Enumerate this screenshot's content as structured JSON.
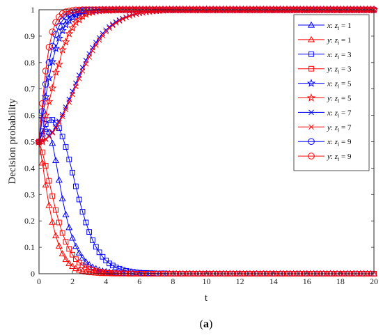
{
  "caption": {
    "open": "(",
    "letter": "a",
    "close": ")"
  },
  "chart_data": {
    "type": "line",
    "xlabel": "t",
    "ylabel": "Decision probability",
    "xlim": [
      0,
      20
    ],
    "ylim": [
      0,
      1
    ],
    "xticks": [
      0,
      2,
      4,
      6,
      8,
      10,
      12,
      14,
      16,
      18,
      20
    ],
    "yticks": [
      0,
      0.1,
      0.2,
      0.3,
      0.4,
      0.5,
      0.6,
      0.7,
      0.8,
      0.9,
      1
    ],
    "grid": false,
    "legend_position": "top-right",
    "x": [
      0,
      0.2,
      0.4,
      0.6,
      0.8,
      1.0,
      1.2,
      1.4,
      1.6,
      1.8,
      2.0,
      2.2,
      2.4,
      2.6,
      2.8,
      3.0,
      3.2,
      3.4,
      3.6,
      3.8,
      4.0,
      4.2,
      4.4,
      4.6,
      4.8,
      5.0,
      5.2,
      5.4,
      5.6,
      5.8,
      6.0,
      6.2,
      6.4,
      6.6,
      6.8,
      7.0,
      7.2,
      7.4,
      7.6,
      7.8,
      8.0,
      8.2,
      8.4,
      8.6,
      8.8,
      9.0,
      9.2,
      9.4,
      9.6,
      9.8,
      10.0,
      10.2,
      10.4,
      10.6,
      10.8,
      11.0,
      11.2,
      11.4,
      11.6,
      11.8,
      12.0,
      12.2,
      12.4,
      12.6,
      12.8,
      13.0,
      13.2,
      13.4,
      13.6,
      13.8,
      14.0,
      14.2,
      14.4,
      14.6,
      14.8,
      15.0,
      15.2,
      15.4,
      15.6,
      15.8,
      16.0,
      16.2,
      16.4,
      16.6,
      16.8,
      17.0,
      17.2,
      17.4,
      17.6,
      17.8,
      18.0,
      18.2,
      18.4,
      18.6,
      18.8,
      19.0,
      19.2,
      19.4,
      19.6,
      19.8,
      20.0
    ],
    "series": [
      {
        "name_prefix": "x",
        "name_value": "1",
        "color": "#0000ff",
        "marker": "triangle",
        "values": [
          0.5,
          0.53,
          0.548,
          0.537,
          0.494,
          0.429,
          0.355,
          0.284,
          0.224,
          0.175,
          0.135,
          0.104,
          0.079,
          0.06,
          0.045,
          0.034,
          0.025,
          0.019,
          0.014,
          0.01,
          0.008,
          0.006,
          0.004,
          0.003,
          0.002,
          0.002,
          0.001,
          0.001,
          0.001,
          0.0,
          0.0,
          0.0,
          0.0,
          0.0,
          0.0,
          0.0,
          0.0,
          0.0,
          0.0,
          0.0,
          0.0,
          0.0,
          0.0,
          0.0,
          0.0,
          0.0,
          0.0,
          0.0,
          0.0,
          0.0,
          0.0,
          0.0,
          0.0,
          0.0,
          0.0,
          0.0,
          0.0,
          0.0,
          0.0,
          0.0,
          0.0,
          0.0,
          0.0,
          0.0,
          0.0,
          0.0,
          0.0,
          0.0,
          0.0,
          0.0,
          0.0,
          0.0,
          0.0,
          0.0,
          0.0,
          0.0,
          0.0,
          0.0,
          0.0,
          0.0,
          0.0,
          0.0,
          0.0,
          0.0,
          0.0,
          0.0,
          0.0,
          0.0,
          0.0,
          0.0,
          0.0,
          0.0,
          0.0,
          0.0,
          0.0,
          0.0,
          0.0,
          0.0,
          0.0,
          0.0,
          0.0
        ]
      },
      {
        "name_prefix": "y",
        "name_value": "1",
        "color": "#ff0000",
        "marker": "triangle",
        "values": [
          0.5,
          0.42,
          0.336,
          0.259,
          0.195,
          0.144,
          0.105,
          0.076,
          0.054,
          0.039,
          0.028,
          0.02,
          0.014,
          0.01,
          0.007,
          0.005,
          0.004,
          0.003,
          0.002,
          0.001,
          0.001,
          0.001,
          0.0,
          0.0,
          0.0,
          0.0,
          0.0,
          0.0,
          0.0,
          0.0,
          0.0,
          0.0,
          0.0,
          0.0,
          0.0,
          0.0,
          0.0,
          0.0,
          0.0,
          0.0,
          0.0,
          0.0,
          0.0,
          0.0,
          0.0,
          0.0,
          0.0,
          0.0,
          0.0,
          0.0,
          0.0,
          0.0,
          0.0,
          0.0,
          0.0,
          0.0,
          0.0,
          0.0,
          0.0,
          0.0,
          0.0,
          0.0,
          0.0,
          0.0,
          0.0,
          0.0,
          0.0,
          0.0,
          0.0,
          0.0,
          0.0,
          0.0,
          0.0,
          0.0,
          0.0,
          0.0,
          0.0,
          0.0,
          0.0,
          0.0,
          0.0,
          0.0,
          0.0,
          0.0,
          0.0,
          0.0,
          0.0,
          0.0,
          0.0,
          0.0,
          0.0,
          0.0,
          0.0,
          0.0,
          0.0,
          0.0,
          0.0,
          0.0,
          0.0,
          0.0,
          0.0
        ]
      },
      {
        "name_prefix": "x",
        "name_value": "3",
        "color": "#0000ff",
        "marker": "square",
        "values": [
          0.5,
          0.54,
          0.567,
          0.582,
          0.583,
          0.573,
          0.551,
          0.52,
          0.48,
          0.433,
          0.383,
          0.331,
          0.281,
          0.235,
          0.194,
          0.158,
          0.127,
          0.102,
          0.081,
          0.064,
          0.05,
          0.039,
          0.031,
          0.024,
          0.019,
          0.015,
          0.011,
          0.009,
          0.007,
          0.005,
          0.004,
          0.003,
          0.003,
          0.002,
          0.002,
          0.001,
          0.001,
          0.001,
          0.001,
          0.0,
          0.0,
          0.0,
          0.0,
          0.0,
          0.0,
          0.0,
          0.0,
          0.0,
          0.0,
          0.0,
          0.0,
          0.0,
          0.0,
          0.0,
          0.0,
          0.0,
          0.0,
          0.0,
          0.0,
          0.0,
          0.0,
          0.0,
          0.0,
          0.0,
          0.0,
          0.0,
          0.0,
          0.0,
          0.0,
          0.0,
          0.0,
          0.0,
          0.0,
          0.0,
          0.0,
          0.0,
          0.0,
          0.0,
          0.0,
          0.0,
          0.0,
          0.0,
          0.0,
          0.0,
          0.0,
          0.0,
          0.0,
          0.0,
          0.0,
          0.0,
          0.0,
          0.0,
          0.0,
          0.0,
          0.0,
          0.0,
          0.0,
          0.0,
          0.0,
          0.0,
          0.0
        ]
      },
      {
        "name_prefix": "y",
        "name_value": "3",
        "color": "#ff0000",
        "marker": "square",
        "values": [
          0.5,
          0.46,
          0.409,
          0.352,
          0.294,
          0.241,
          0.194,
          0.154,
          0.121,
          0.094,
          0.072,
          0.055,
          0.042,
          0.032,
          0.024,
          0.018,
          0.014,
          0.01,
          0.008,
          0.006,
          0.004,
          0.003,
          0.002,
          0.002,
          0.001,
          0.001,
          0.001,
          0.0,
          0.0,
          0.0,
          0.0,
          0.0,
          0.0,
          0.0,
          0.0,
          0.0,
          0.0,
          0.0,
          0.0,
          0.0,
          0.0,
          0.0,
          0.0,
          0.0,
          0.0,
          0.0,
          0.0,
          0.0,
          0.0,
          0.0,
          0.0,
          0.0,
          0.0,
          0.0,
          0.0,
          0.0,
          0.0,
          0.0,
          0.0,
          0.0,
          0.0,
          0.0,
          0.0,
          0.0,
          0.0,
          0.0,
          0.0,
          0.0,
          0.0,
          0.0,
          0.0,
          0.0,
          0.0,
          0.0,
          0.0,
          0.0,
          0.0,
          0.0,
          0.0,
          0.0,
          0.0,
          0.0,
          0.0,
          0.0,
          0.0,
          0.0,
          0.0,
          0.0,
          0.0,
          0.0,
          0.0,
          0.0,
          0.0,
          0.0,
          0.0,
          0.0,
          0.0,
          0.0,
          0.0,
          0.0,
          0.0
        ]
      },
      {
        "name_prefix": "x",
        "name_value": "5",
        "color": "#0000ff",
        "marker": "star",
        "values": [
          0.5,
          0.588,
          0.67,
          0.742,
          0.803,
          0.853,
          0.892,
          0.921,
          0.943,
          0.959,
          0.971,
          0.979,
          0.985,
          0.99,
          0.993,
          0.995,
          0.996,
          0.997,
          0.998,
          0.999,
          0.999,
          0.999,
          0.999,
          1.0,
          1.0,
          1.0,
          1.0,
          1.0,
          1.0,
          1.0,
          1.0,
          1.0,
          1.0,
          1.0,
          1.0,
          1.0,
          1.0,
          1.0,
          1.0,
          1.0,
          1.0,
          1.0,
          1.0,
          1.0,
          1.0,
          1.0,
          1.0,
          1.0,
          1.0,
          1.0,
          1.0,
          1.0,
          1.0,
          1.0,
          1.0,
          1.0,
          1.0,
          1.0,
          1.0,
          1.0,
          1.0,
          1.0,
          1.0,
          1.0,
          1.0,
          1.0,
          1.0,
          1.0,
          1.0,
          1.0,
          1.0,
          1.0,
          1.0,
          1.0,
          1.0,
          1.0,
          1.0,
          1.0,
          1.0,
          1.0,
          1.0,
          1.0,
          1.0,
          1.0,
          1.0,
          1.0,
          1.0,
          1.0,
          1.0,
          1.0,
          1.0,
          1.0,
          1.0,
          1.0,
          1.0,
          1.0,
          1.0,
          1.0,
          1.0,
          1.0,
          1.0
        ]
      },
      {
        "name_prefix": "y",
        "name_value": "5",
        "color": "#ff0000",
        "marker": "star",
        "values": [
          0.5,
          0.5,
          0.6,
          0.652,
          0.703,
          0.763,
          0.793,
          0.848,
          0.878,
          0.909,
          0.931,
          0.952,
          0.962,
          0.975,
          0.983,
          0.989,
          0.991,
          0.995,
          0.996,
          0.998,
          0.998,
          0.999,
          0.999,
          1.0,
          1.0,
          1.0,
          1.0,
          1.0,
          1.0,
          1.0,
          1.0,
          1.0,
          1.0,
          1.0,
          1.0,
          1.0,
          1.0,
          1.0,
          1.0,
          1.0,
          1.0,
          1.0,
          1.0,
          1.0,
          1.0,
          1.0,
          1.0,
          1.0,
          1.0,
          1.0,
          1.0,
          1.0,
          1.0,
          1.0,
          1.0,
          1.0,
          1.0,
          1.0,
          1.0,
          1.0,
          1.0,
          1.0,
          1.0,
          1.0,
          1.0,
          1.0,
          1.0,
          1.0,
          1.0,
          1.0,
          1.0,
          1.0,
          1.0,
          1.0,
          1.0,
          1.0,
          1.0,
          1.0,
          1.0,
          1.0,
          1.0,
          1.0,
          1.0,
          1.0,
          1.0,
          1.0,
          1.0,
          1.0,
          1.0,
          1.0,
          1.0,
          1.0,
          1.0,
          1.0,
          1.0,
          1.0,
          1.0,
          1.0,
          1.0,
          1.0,
          1.0
        ]
      },
      {
        "name_prefix": "x",
        "name_value": "7",
        "color": "#0000ff",
        "marker": "x",
        "values": [
          0.5,
          0.504,
          0.511,
          0.522,
          0.537,
          0.556,
          0.578,
          0.603,
          0.631,
          0.661,
          0.691,
          0.722,
          0.752,
          0.781,
          0.808,
          0.833,
          0.856,
          0.876,
          0.894,
          0.91,
          0.923,
          0.935,
          0.945,
          0.954,
          0.961,
          0.967,
          0.972,
          0.977,
          0.981,
          0.984,
          0.986,
          0.988,
          0.99,
          0.992,
          0.993,
          0.994,
          0.995,
          0.996,
          0.997,
          0.997,
          0.998,
          0.998,
          0.998,
          0.999,
          0.999,
          0.999,
          0.999,
          0.999,
          0.999,
          1.0,
          1.0,
          1.0,
          1.0,
          1.0,
          1.0,
          1.0,
          1.0,
          1.0,
          1.0,
          1.0,
          1.0,
          1.0,
          1.0,
          1.0,
          1.0,
          1.0,
          1.0,
          1.0,
          1.0,
          1.0,
          1.0,
          1.0,
          1.0,
          1.0,
          1.0,
          1.0,
          1.0,
          1.0,
          1.0,
          1.0,
          1.0,
          1.0,
          1.0,
          1.0,
          1.0,
          1.0,
          1.0,
          1.0,
          1.0,
          1.0,
          1.0,
          1.0,
          1.0,
          1.0,
          1.0,
          1.0,
          1.0,
          1.0,
          1.0,
          1.0,
          1.0
        ]
      },
      {
        "name_prefix": "y",
        "name_value": "7",
        "color": "#ff0000",
        "marker": "x",
        "values": [
          0.5,
          0.503,
          0.51,
          0.52,
          0.534,
          0.551,
          0.572,
          0.596,
          0.622,
          0.65,
          0.679,
          0.709,
          0.739,
          0.768,
          0.795,
          0.821,
          0.845,
          0.866,
          0.885,
          0.902,
          0.917,
          0.93,
          0.941,
          0.95,
          0.958,
          0.965,
          0.971,
          0.976,
          0.98,
          0.983,
          0.986,
          0.988,
          0.99,
          0.992,
          0.993,
          0.994,
          0.995,
          0.996,
          0.997,
          0.997,
          0.998,
          0.998,
          0.998,
          0.999,
          0.999,
          0.999,
          0.999,
          0.999,
          0.999,
          1.0,
          1.0,
          1.0,
          1.0,
          1.0,
          1.0,
          1.0,
          1.0,
          1.0,
          1.0,
          1.0,
          1.0,
          1.0,
          1.0,
          1.0,
          1.0,
          1.0,
          1.0,
          1.0,
          1.0,
          1.0,
          1.0,
          1.0,
          1.0,
          1.0,
          1.0,
          1.0,
          1.0,
          1.0,
          1.0,
          1.0,
          1.0,
          1.0,
          1.0,
          1.0,
          1.0,
          1.0,
          1.0,
          1.0,
          1.0,
          1.0,
          1.0,
          1.0,
          1.0,
          1.0,
          1.0,
          1.0,
          1.0,
          1.0,
          1.0,
          1.0,
          1.0
        ]
      },
      {
        "name_prefix": "x",
        "name_value": "9",
        "color": "#0000ff",
        "marker": "circle",
        "values": [
          0.5,
          0.615,
          0.718,
          0.8,
          0.862,
          0.907,
          0.938,
          0.959,
          0.973,
          0.982,
          0.988,
          0.992,
          0.995,
          0.997,
          0.998,
          0.999,
          0.999,
          0.999,
          1.0,
          1.0,
          1.0,
          1.0,
          1.0,
          1.0,
          1.0,
          1.0,
          1.0,
          1.0,
          1.0,
          1.0,
          1.0,
          1.0,
          1.0,
          1.0,
          1.0,
          1.0,
          1.0,
          1.0,
          1.0,
          1.0,
          1.0,
          1.0,
          1.0,
          1.0,
          1.0,
          1.0,
          1.0,
          1.0,
          1.0,
          1.0,
          1.0,
          1.0,
          1.0,
          1.0,
          1.0,
          1.0,
          1.0,
          1.0,
          1.0,
          1.0,
          1.0,
          1.0,
          1.0,
          1.0,
          1.0,
          1.0,
          1.0,
          1.0,
          1.0,
          1.0,
          1.0,
          1.0,
          1.0,
          1.0,
          1.0,
          1.0,
          1.0,
          1.0,
          1.0,
          1.0,
          1.0,
          1.0,
          1.0,
          1.0,
          1.0,
          1.0,
          1.0,
          1.0,
          1.0,
          1.0,
          1.0,
          1.0,
          1.0,
          1.0,
          1.0,
          1.0,
          1.0,
          1.0,
          1.0,
          1.0,
          1.0
        ]
      },
      {
        "name_prefix": "y",
        "name_value": "9",
        "color": "#ff0000",
        "marker": "circle",
        "values": [
          0.5,
          0.645,
          0.768,
          0.858,
          0.916,
          0.952,
          0.973,
          0.985,
          0.992,
          0.995,
          0.997,
          0.999,
          0.999,
          1.0,
          1.0,
          1.0,
          1.0,
          1.0,
          1.0,
          1.0,
          1.0,
          1.0,
          1.0,
          1.0,
          1.0,
          1.0,
          1.0,
          1.0,
          1.0,
          1.0,
          1.0,
          1.0,
          1.0,
          1.0,
          1.0,
          1.0,
          1.0,
          1.0,
          1.0,
          1.0,
          1.0,
          1.0,
          1.0,
          1.0,
          1.0,
          1.0,
          1.0,
          1.0,
          1.0,
          1.0,
          1.0,
          1.0,
          1.0,
          1.0,
          1.0,
          1.0,
          1.0,
          1.0,
          1.0,
          1.0,
          1.0,
          1.0,
          1.0,
          1.0,
          1.0,
          1.0,
          1.0,
          1.0,
          1.0,
          1.0,
          1.0,
          1.0,
          1.0,
          1.0,
          1.0,
          1.0,
          1.0,
          1.0,
          1.0,
          1.0,
          1.0,
          1.0,
          1.0,
          1.0,
          1.0,
          1.0,
          1.0,
          1.0,
          1.0,
          1.0,
          1.0,
          1.0,
          1.0,
          1.0,
          1.0,
          1.0,
          1.0,
          1.0,
          1.0,
          1.0,
          1.0
        ]
      }
    ]
  }
}
